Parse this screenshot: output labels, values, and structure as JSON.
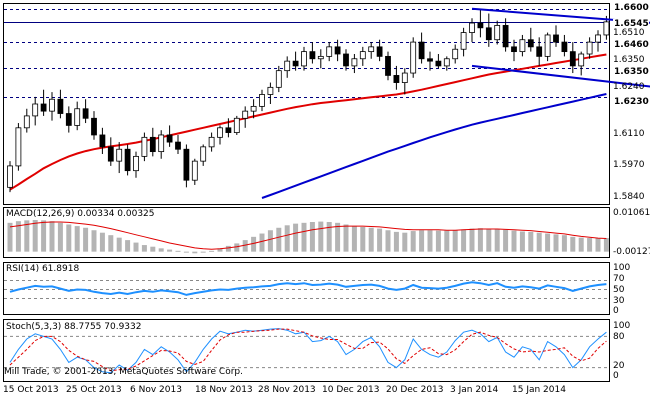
{
  "chart_data": {
    "type": "candlestick",
    "instrument_note": "Daily candles with moving averages and trend lines",
    "price_axis": {
      "ticks": [
        "1.6510",
        "1.6350",
        "1.6240",
        "1.6110",
        "1.5970",
        "1.5840"
      ],
      "ylim": [
        1.578,
        1.662
      ]
    },
    "levels": [
      {
        "value": 1.66,
        "label": "1.6600"
      },
      {
        "value": 1.6545,
        "label": "1.6545"
      },
      {
        "value": 1.646,
        "label": "1.6460"
      },
      {
        "value": 1.635,
        "label": "1.6350"
      },
      {
        "value": 1.623,
        "label": "1.6230"
      }
    ],
    "date_labels": [
      "15 Oct 2013",
      "25 Oct 2013",
      "6 Nov 2013",
      "18 Nov 2013",
      "28 Nov 2013",
      "10 Dec 2013",
      "20 Dec 2013",
      "3 Jan 2014",
      "15 Jan 2014"
    ],
    "ohlc": [
      [
        1.585,
        1.596,
        1.583,
        1.594
      ],
      [
        1.594,
        1.612,
        1.592,
        1.61
      ],
      [
        1.61,
        1.618,
        1.608,
        1.615
      ],
      [
        1.615,
        1.623,
        1.611,
        1.62
      ],
      [
        1.62,
        1.626,
        1.615,
        1.617
      ],
      [
        1.617,
        1.625,
        1.613,
        1.622
      ],
      [
        1.622,
        1.626,
        1.614,
        1.616
      ],
      [
        1.616,
        1.619,
        1.608,
        1.611
      ],
      [
        1.611,
        1.621,
        1.609,
        1.618
      ],
      [
        1.618,
        1.622,
        1.612,
        1.614
      ],
      [
        1.614,
        1.617,
        1.605,
        1.607
      ],
      [
        1.607,
        1.61,
        1.599,
        1.602
      ],
      [
        1.602,
        1.606,
        1.594,
        1.596
      ],
      [
        1.596,
        1.604,
        1.591,
        1.601
      ],
      [
        1.601,
        1.603,
        1.59,
        1.592
      ],
      [
        1.592,
        1.6,
        1.589,
        1.598
      ],
      [
        1.598,
        1.608,
        1.596,
        1.606
      ],
      [
        1.606,
        1.61,
        1.598,
        1.6
      ],
      [
        1.6,
        1.609,
        1.597,
        1.607
      ],
      [
        1.607,
        1.611,
        1.602,
        1.604
      ],
      [
        1.604,
        1.607,
        1.599,
        1.601
      ],
      [
        1.601,
        1.603,
        1.585,
        1.588
      ],
      [
        1.588,
        1.597,
        1.586,
        1.596
      ],
      [
        1.596,
        1.603,
        1.594,
        1.602
      ],
      [
        1.602,
        1.608,
        1.6,
        1.606
      ],
      [
        1.606,
        1.611,
        1.603,
        1.61
      ],
      [
        1.61,
        1.614,
        1.606,
        1.608
      ],
      [
        1.608,
        1.615,
        1.607,
        1.614
      ],
      [
        1.614,
        1.619,
        1.61,
        1.617
      ],
      [
        1.617,
        1.622,
        1.614,
        1.619
      ],
      [
        1.619,
        1.626,
        1.617,
        1.624
      ],
      [
        1.624,
        1.629,
        1.62,
        1.627
      ],
      [
        1.627,
        1.636,
        1.625,
        1.634
      ],
      [
        1.634,
        1.64,
        1.631,
        1.638
      ],
      [
        1.638,
        1.642,
        1.634,
        1.636
      ],
      [
        1.636,
        1.644,
        1.634,
        1.642
      ],
      [
        1.642,
        1.646,
        1.637,
        1.639
      ],
      [
        1.639,
        1.643,
        1.635,
        1.64
      ],
      [
        1.64,
        1.646,
        1.638,
        1.644
      ],
      [
        1.644,
        1.647,
        1.638,
        1.641
      ],
      [
        1.641,
        1.643,
        1.634,
        1.636
      ],
      [
        1.636,
        1.641,
        1.633,
        1.639
      ],
      [
        1.639,
        1.644,
        1.636,
        1.642
      ],
      [
        1.642,
        1.646,
        1.639,
        1.644
      ],
      [
        1.644,
        1.647,
        1.638,
        1.64
      ],
      [
        1.64,
        1.642,
        1.63,
        1.632
      ],
      [
        1.632,
        1.636,
        1.626,
        1.629
      ],
      [
        1.629,
        1.635,
        1.624,
        1.633
      ],
      [
        1.633,
        1.648,
        1.631,
        1.646
      ],
      [
        1.646,
        1.65,
        1.637,
        1.639
      ],
      [
        1.639,
        1.642,
        1.634,
        1.638
      ],
      [
        1.638,
        1.641,
        1.635,
        1.636
      ],
      [
        1.636,
        1.64,
        1.634,
        1.639
      ],
      [
        1.639,
        1.645,
        1.637,
        1.643
      ],
      [
        1.643,
        1.652,
        1.64,
        1.65
      ],
      [
        1.65,
        1.656,
        1.646,
        1.654
      ],
      [
        1.654,
        1.66,
        1.648,
        1.652
      ],
      [
        1.652,
        1.658,
        1.644,
        1.647
      ],
      [
        1.647,
        1.655,
        1.645,
        1.653
      ],
      [
        1.653,
        1.656,
        1.642,
        1.644
      ],
      [
        1.644,
        1.647,
        1.638,
        1.642
      ],
      [
        1.642,
        1.649,
        1.64,
        1.647
      ],
      [
        1.647,
        1.652,
        1.642,
        1.644
      ],
      [
        1.644,
        1.648,
        1.636,
        1.64
      ],
      [
        1.64,
        1.65,
        1.638,
        1.649
      ],
      [
        1.649,
        1.653,
        1.644,
        1.646
      ],
      [
        1.646,
        1.649,
        1.64,
        1.642
      ],
      [
        1.642,
        1.646,
        1.633,
        1.636
      ],
      [
        1.636,
        1.642,
        1.632,
        1.641
      ],
      [
        1.641,
        1.648,
        1.639,
        1.646
      ],
      [
        1.646,
        1.651,
        1.642,
        1.649
      ],
      [
        1.649,
        1.657,
        1.647,
        1.6545
      ]
    ],
    "ma_red": [
      1.584,
      1.5862,
      1.5885,
      1.5907,
      1.593,
      1.5948,
      1.5965,
      1.598,
      1.5992,
      1.6002,
      1.601,
      1.6017,
      1.6022,
      1.6027,
      1.6032,
      1.6038,
      1.6045,
      1.6052,
      1.606,
      1.6068,
      1.6076,
      1.6084,
      1.6092,
      1.61,
      1.6108,
      1.6116,
      1.6124,
      1.6132,
      1.614,
      1.6148,
      1.6156,
      1.6164,
      1.6172,
      1.618,
      1.6187,
      1.6193,
      1.6199,
      1.6204,
      1.6208,
      1.6212,
      1.6216,
      1.622,
      1.6224,
      1.6228,
      1.6232,
      1.6236,
      1.624,
      1.6246,
      1.6253,
      1.626,
      1.6268,
      1.6276,
      1.6284,
      1.6292,
      1.63,
      1.6308,
      1.6316,
      1.6324,
      1.633,
      1.6336,
      1.6342,
      1.6348,
      1.6354,
      1.636,
      1.6366,
      1.6372,
      1.6378,
      1.6384,
      1.639,
      1.6396,
      1.6402,
      1.6408
    ],
    "ma_blue": [
      null,
      null,
      null,
      null,
      null,
      null,
      null,
      null,
      null,
      null,
      null,
      null,
      null,
      null,
      null,
      null,
      null,
      null,
      null,
      null,
      null,
      null,
      null,
      null,
      null,
      null,
      null,
      null,
      null,
      null,
      1.5805,
      1.5818,
      1.5831,
      1.5844,
      1.5857,
      1.587,
      1.5883,
      1.5896,
      1.5909,
      1.5922,
      1.5935,
      1.5948,
      1.5961,
      1.5974,
      1.5987,
      1.6,
      1.6012,
      1.6024,
      1.6036,
      1.6048,
      1.606,
      1.6071,
      1.6082,
      1.6093,
      1.6103,
      1.6113,
      1.6122,
      1.613,
      1.6138,
      1.6146,
      1.6154,
      1.6162,
      1.617,
      1.6178,
      1.6186,
      1.6194,
      1.6202,
      1.621,
      1.6218,
      1.6226,
      1.6234,
      1.6242
    ],
    "trendline_upper": {
      "from": [
        55,
        1.66
      ],
      "to": [
        82,
        1.6525
      ]
    },
    "trendline_lower": {
      "from": [
        55,
        1.636
      ],
      "to": [
        82,
        1.625
      ]
    },
    "macd": {
      "label": "MACD(12,26,9) 0.00334 0.00325",
      "axis_ticks": [
        "0.01061",
        "-0.00127"
      ],
      "ylim": [
        -0.0013,
        0.0106
      ],
      "histogram": [
        0.007,
        0.0074,
        0.0076,
        0.0077,
        0.0076,
        0.0074,
        0.007,
        0.0066,
        0.0062,
        0.0058,
        0.0052,
        0.0046,
        0.004,
        0.0034,
        0.0028,
        0.0022,
        0.0016,
        0.0012,
        0.0008,
        0.0005,
        0.0002,
        -0.0002,
        -0.0004,
        -0.0002,
        0.0002,
        0.0008,
        0.0014,
        0.002,
        0.0028,
        0.0036,
        0.0044,
        0.0052,
        0.0058,
        0.0064,
        0.0068,
        0.007,
        0.0072,
        0.0073,
        0.0072,
        0.007,
        0.0066,
        0.0062,
        0.006,
        0.0058,
        0.0056,
        0.0052,
        0.0048,
        0.0046,
        0.005,
        0.0052,
        0.0052,
        0.0051,
        0.0051,
        0.0052,
        0.0054,
        0.0056,
        0.0057,
        0.0056,
        0.0055,
        0.0053,
        0.0051,
        0.0049,
        0.0048,
        0.0046,
        0.0044,
        0.0042,
        0.004,
        0.0036,
        0.0034,
        0.0033,
        0.0033,
        0.0033
      ],
      "signal": [
        0.006,
        0.0063,
        0.0066,
        0.0069,
        0.0071,
        0.0072,
        0.0072,
        0.0071,
        0.0069,
        0.0067,
        0.0064,
        0.006,
        0.0056,
        0.0051,
        0.0046,
        0.0041,
        0.0036,
        0.0031,
        0.0026,
        0.0021,
        0.0017,
        0.0013,
        0.0009,
        0.0007,
        0.0006,
        0.0007,
        0.0009,
        0.0012,
        0.0016,
        0.002,
        0.0025,
        0.003,
        0.0035,
        0.004,
        0.0045,
        0.0049,
        0.0053,
        0.0056,
        0.0059,
        0.0061,
        0.0062,
        0.0062,
        0.0062,
        0.0061,
        0.006,
        0.0058,
        0.0056,
        0.0054,
        0.0053,
        0.0053,
        0.0053,
        0.0053,
        0.0052,
        0.0052,
        0.0053,
        0.0054,
        0.0055,
        0.0055,
        0.0055,
        0.0054,
        0.0053,
        0.0052,
        0.0051,
        0.0049,
        0.0047,
        0.0045,
        0.0043,
        0.004,
        0.0037,
        0.0035,
        0.0033,
        0.0032
      ]
    },
    "rsi": {
      "label": "RSI(14) 61.8918",
      "axis_ticks": [
        "100",
        "70",
        "50",
        "30",
        "0"
      ],
      "levels": [
        70,
        50,
        30
      ],
      "values": [
        45,
        50,
        54,
        58,
        56,
        57,
        52,
        47,
        50,
        49,
        45,
        42,
        40,
        43,
        40,
        44,
        47,
        45,
        48,
        46,
        44,
        38,
        42,
        45,
        48,
        50,
        49,
        52,
        54,
        55,
        57,
        58,
        62,
        64,
        62,
        64,
        60,
        61,
        63,
        61,
        56,
        58,
        60,
        61,
        58,
        52,
        49,
        52,
        60,
        54,
        53,
        52,
        54,
        58,
        63,
        66,
        64,
        60,
        64,
        56,
        54,
        57,
        55,
        52,
        59,
        56,
        53,
        47,
        52,
        57,
        60,
        62
      ]
    },
    "stoch": {
      "label": "Stoch(5,3,3) 88.7755 70.9332",
      "axis_ticks": [
        "100",
        "80",
        "20",
        "0"
      ],
      "main": [
        30,
        55,
        75,
        85,
        80,
        75,
        55,
        30,
        40,
        35,
        20,
        12,
        10,
        25,
        15,
        30,
        55,
        45,
        60,
        50,
        35,
        12,
        30,
        55,
        75,
        90,
        85,
        88,
        92,
        90,
        92,
        94,
        95,
        92,
        85,
        88,
        70,
        72,
        80,
        70,
        45,
        55,
        70,
        78,
        60,
        30,
        20,
        35,
        75,
        55,
        45,
        40,
        50,
        72,
        88,
        92,
        85,
        70,
        78,
        50,
        40,
        60,
        55,
        35,
        70,
        60,
        45,
        20,
        35,
        60,
        75,
        88
      ],
      "signal": [
        25,
        40,
        55,
        72,
        80,
        80,
        70,
        53,
        42,
        35,
        32,
        22,
        14,
        16,
        17,
        23,
        33,
        43,
        53,
        52,
        48,
        32,
        26,
        32,
        53,
        73,
        83,
        88,
        88,
        90,
        91,
        92,
        94,
        94,
        91,
        88,
        81,
        77,
        74,
        74,
        65,
        57,
        57,
        68,
        69,
        56,
        37,
        28,
        43,
        55,
        58,
        47,
        45,
        54,
        70,
        84,
        88,
        82,
        78,
        66,
        56,
        50,
        52,
        50,
        53,
        55,
        58,
        42,
        33,
        38,
        57,
        71
      ]
    }
  },
  "labels": {
    "copyright": "Mill Trade, © 2001-2013, MetaQuotes Software Corp."
  },
  "colors": {
    "candle_outline": "#000000",
    "bull_body": "#ffffff",
    "bear_body": "#000000",
    "ma_red": "#e00000",
    "ma_blue": "#0000cc",
    "trendline": "#0000cc",
    "level_line": "#000080",
    "macd_hist": "#b4b4b4",
    "macd_signal": "#e00000",
    "rsi_line": "#1e90ff",
    "stoch_main": "#1e90ff",
    "stoch_signal": "#e00000"
  }
}
